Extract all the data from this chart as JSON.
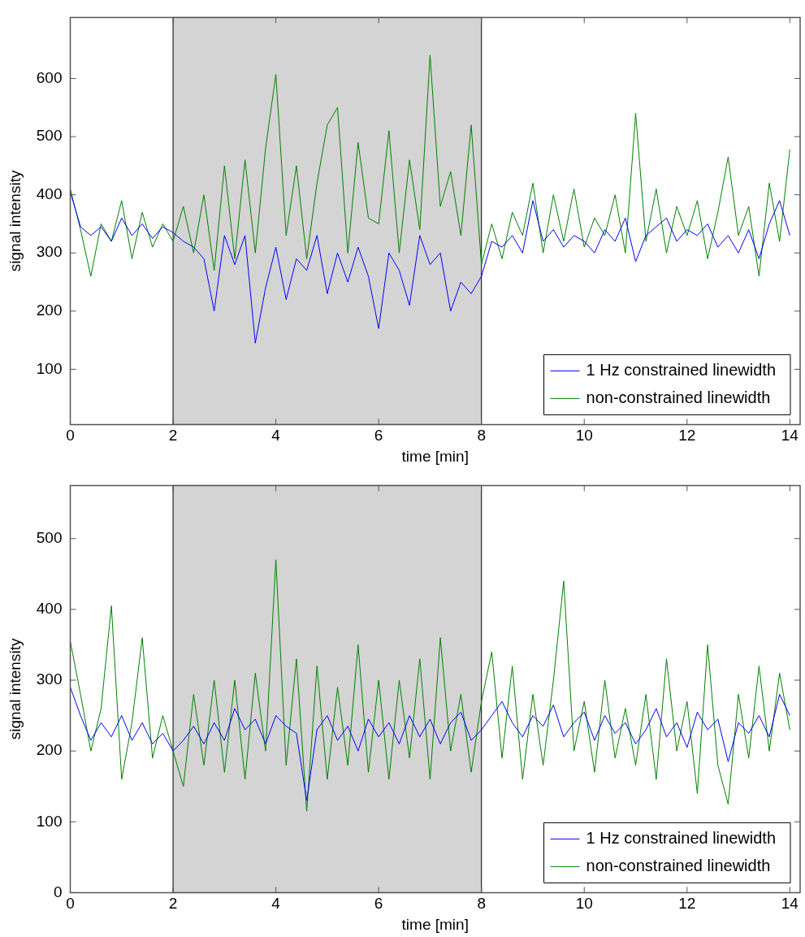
{
  "chart_data": [
    {
      "type": "line",
      "xlabel": "time [min]",
      "ylabel": "signal intensity",
      "legend": "bottom right",
      "grid": false,
      "line_style": "solid",
      "marker": "none",
      "xlim": [
        0,
        14.2
      ],
      "xticks": [
        0,
        2,
        4,
        6,
        8,
        10,
        12,
        14
      ],
      "ylim": [
        5,
        705
      ],
      "yticks": [
        100,
        200,
        300,
        400,
        500,
        600
      ],
      "bands": [
        {
          "axis": "x",
          "from": 2,
          "to": 8,
          "color": "#d4d4d4"
        }
      ],
      "x": [
        0,
        0.2,
        0.4,
        0.6,
        0.8,
        1,
        1.2,
        1.4,
        1.6,
        1.8,
        2,
        2.2,
        2.4,
        2.6,
        2.8,
        3,
        3.2,
        3.4,
        3.6,
        3.8,
        4,
        4.2,
        4.4,
        4.6,
        4.8,
        5,
        5.2,
        5.4,
        5.6,
        5.8,
        6,
        6.2,
        6.4,
        6.6,
        6.8,
        7,
        7.2,
        7.4,
        7.6,
        7.8,
        8,
        8.2,
        8.4,
        8.6,
        8.8,
        9,
        9.2,
        9.4,
        9.6,
        9.8,
        10,
        10.2,
        10.4,
        10.6,
        10.8,
        11,
        11.2,
        11.4,
        11.6,
        11.8,
        12,
        12.2,
        12.4,
        12.6,
        12.8,
        13,
        13.2,
        13.4,
        13.6,
        13.8,
        14
      ],
      "series": [
        {
          "name": "1 Hz constrained linewidth",
          "color": "#0000ff",
          "values": [
            405,
            345,
            330,
            345,
            320,
            360,
            330,
            350,
            325,
            345,
            335,
            320,
            310,
            290,
            200,
            330,
            280,
            330,
            145,
            240,
            310,
            220,
            290,
            270,
            330,
            230,
            300,
            250,
            310,
            260,
            170,
            300,
            270,
            210,
            330,
            280,
            300,
            200,
            250,
            230,
            260,
            320,
            310,
            330,
            300,
            390,
            320,
            340,
            310,
            330,
            320,
            300,
            340,
            320,
            360,
            285,
            330,
            345,
            360,
            320,
            340,
            330,
            350,
            310,
            330,
            300,
            340,
            290,
            350,
            390,
            330
          ]
        },
        {
          "name": "non-constrained linewidth",
          "color": "#008000",
          "values": [
            410,
            340,
            260,
            350,
            320,
            390,
            290,
            370,
            310,
            350,
            320,
            380,
            300,
            400,
            270,
            450,
            290,
            460,
            300,
            480,
            607,
            330,
            450,
            290,
            420,
            520,
            550,
            300,
            490,
            360,
            350,
            510,
            300,
            460,
            340,
            640,
            380,
            440,
            330,
            520,
            280,
            350,
            290,
            370,
            330,
            420,
            300,
            400,
            320,
            410,
            310,
            360,
            330,
            400,
            300,
            540,
            320,
            410,
            300,
            380,
            330,
            390,
            290,
            370,
            465,
            330,
            380,
            260,
            420,
            320,
            478
          ]
        }
      ]
    },
    {
      "type": "line",
      "xlabel": "time [min]",
      "ylabel": "signal intensity",
      "legend": "bottom right",
      "grid": false,
      "line_style": "solid",
      "marker": "none",
      "xlim": [
        0,
        14.2
      ],
      "xticks": [
        0,
        2,
        4,
        6,
        8,
        10,
        12,
        14
      ],
      "ylim": [
        0,
        575
      ],
      "yticks": [
        0,
        100,
        200,
        300,
        400,
        500
      ],
      "bands": [
        {
          "axis": "x",
          "from": 2,
          "to": 8,
          "color": "#d4d4d4"
        }
      ],
      "x": [
        0,
        0.2,
        0.4,
        0.6,
        0.8,
        1,
        1.2,
        1.4,
        1.6,
        1.8,
        2,
        2.2,
        2.4,
        2.6,
        2.8,
        3,
        3.2,
        3.4,
        3.6,
        3.8,
        4,
        4.2,
        4.4,
        4.6,
        4.8,
        5,
        5.2,
        5.4,
        5.6,
        5.8,
        6,
        6.2,
        6.4,
        6.6,
        6.8,
        7,
        7.2,
        7.4,
        7.6,
        7.8,
        8,
        8.2,
        8.4,
        8.6,
        8.8,
        9,
        9.2,
        9.4,
        9.6,
        9.8,
        10,
        10.2,
        10.4,
        10.6,
        10.8,
        11,
        11.2,
        11.4,
        11.6,
        11.8,
        12,
        12.2,
        12.4,
        12.6,
        12.8,
        13,
        13.2,
        13.4,
        13.6,
        13.8,
        14
      ],
      "series": [
        {
          "name": "1 Hz constrained linewidth",
          "color": "#0000ff",
          "values": [
            290,
            250,
            215,
            240,
            220,
            250,
            215,
            240,
            210,
            225,
            200,
            215,
            235,
            210,
            240,
            215,
            260,
            230,
            245,
            210,
            250,
            235,
            225,
            130,
            230,
            250,
            215,
            235,
            200,
            245,
            220,
            240,
            210,
            250,
            220,
            245,
            210,
            240,
            255,
            215,
            230,
            250,
            270,
            240,
            220,
            250,
            235,
            265,
            220,
            240,
            255,
            215,
            250,
            225,
            240,
            210,
            230,
            260,
            220,
            240,
            205,
            255,
            230,
            245,
            185,
            240,
            225,
            250,
            220,
            280,
            250
          ]
        },
        {
          "name": "non-constrained linewidth",
          "color": "#008000",
          "values": [
            355,
            280,
            200,
            260,
            405,
            160,
            240,
            360,
            190,
            250,
            200,
            150,
            280,
            180,
            300,
            170,
            300,
            160,
            310,
            200,
            470,
            180,
            330,
            115,
            320,
            160,
            290,
            180,
            350,
            170,
            300,
            160,
            300,
            190,
            330,
            160,
            360,
            200,
            280,
            170,
            270,
            340,
            190,
            320,
            160,
            280,
            180,
            300,
            440,
            200,
            270,
            170,
            300,
            190,
            260,
            180,
            280,
            160,
            330,
            200,
            270,
            140,
            350,
            180,
            125,
            280,
            190,
            320,
            200,
            310,
            230
          ]
        }
      ]
    }
  ]
}
